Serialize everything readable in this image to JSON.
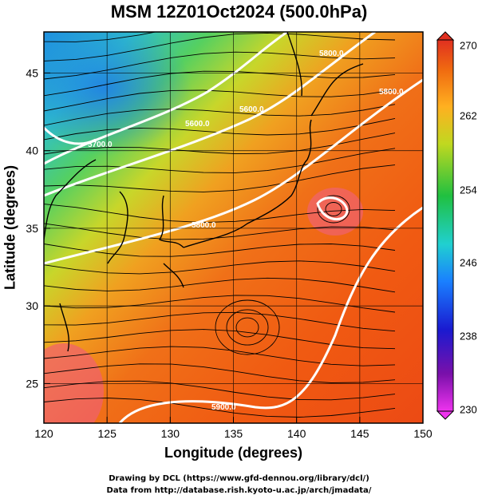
{
  "title": "MSM 12Z01Oct2024 (500.0hPa)",
  "x_axis": {
    "label": "Longitude (degrees)",
    "range": [
      120,
      150
    ],
    "ticks": [
      "120",
      "125",
      "130",
      "135",
      "140",
      "145",
      "150"
    ]
  },
  "y_axis": {
    "label": "Latitude (degrees)",
    "range": [
      22.4,
      47.6
    ],
    "ticks": [
      "25",
      "30",
      "35",
      "40",
      "45"
    ]
  },
  "colorbar": {
    "min": 230,
    "max": 270,
    "ticks": [
      "230",
      "238",
      "246",
      "254",
      "262",
      "270"
    ]
  },
  "contour_labels": [
    "5600.0",
    "5600.0",
    "5700.0",
    "5800.0",
    "5800.0",
    "5900.0",
    "5800.0"
  ],
  "credits": {
    "line1": "Drawing by DCL (https://www.gfd-dennou.org/library/dcl/)",
    "line2": "Data from http://database.rish.kyoto-u.ac.jp/arch/jmadata/"
  }
}
